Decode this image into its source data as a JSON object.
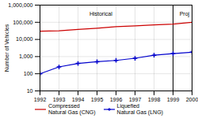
{
  "chart_data": {
    "type": "line",
    "ylabel": "Number of Vehicles",
    "x": [
      1992,
      1993,
      1994,
      1995,
      1996,
      1997,
      1998,
      1999,
      2000
    ],
    "series": [
      {
        "name": "Compressed\nNatural Gas (CNG)",
        "color": "#cc0000",
        "values": [
          30000,
          32000,
          38000,
          45000,
          55000,
          62000,
          70000,
          78000,
          100000
        ]
      },
      {
        "name": "Liquefied\nNatural Gas (LNG)",
        "color": "#0000cc",
        "marker": "plus",
        "values": [
          100,
          250,
          400,
          500,
          600,
          800,
          1200,
          1500,
          1800
        ]
      }
    ],
    "xlim": [
      1992,
      2000
    ],
    "xticks": [
      1992,
      1993,
      1994,
      1995,
      1996,
      1997,
      1998,
      1999,
      2000
    ],
    "ylim": [
      10,
      1000000
    ],
    "yticks": [
      10,
      100,
      {
        "value": 1000,
        "label": "1,000"
      },
      {
        "value": 10000,
        "label": "10,000"
      },
      {
        "value": 100000,
        "label": "100,000"
      },
      {
        "value": 1000000,
        "label": "1,000,000"
      }
    ],
    "log": "y",
    "grid": true,
    "legend": "bottom",
    "vline": 1999,
    "annotations": [
      {
        "text": "Historical",
        "x": 1995.2,
        "y": 300000
      },
      {
        "text": "Proj",
        "x": 1999.6,
        "y": 300000
      }
    ]
  }
}
